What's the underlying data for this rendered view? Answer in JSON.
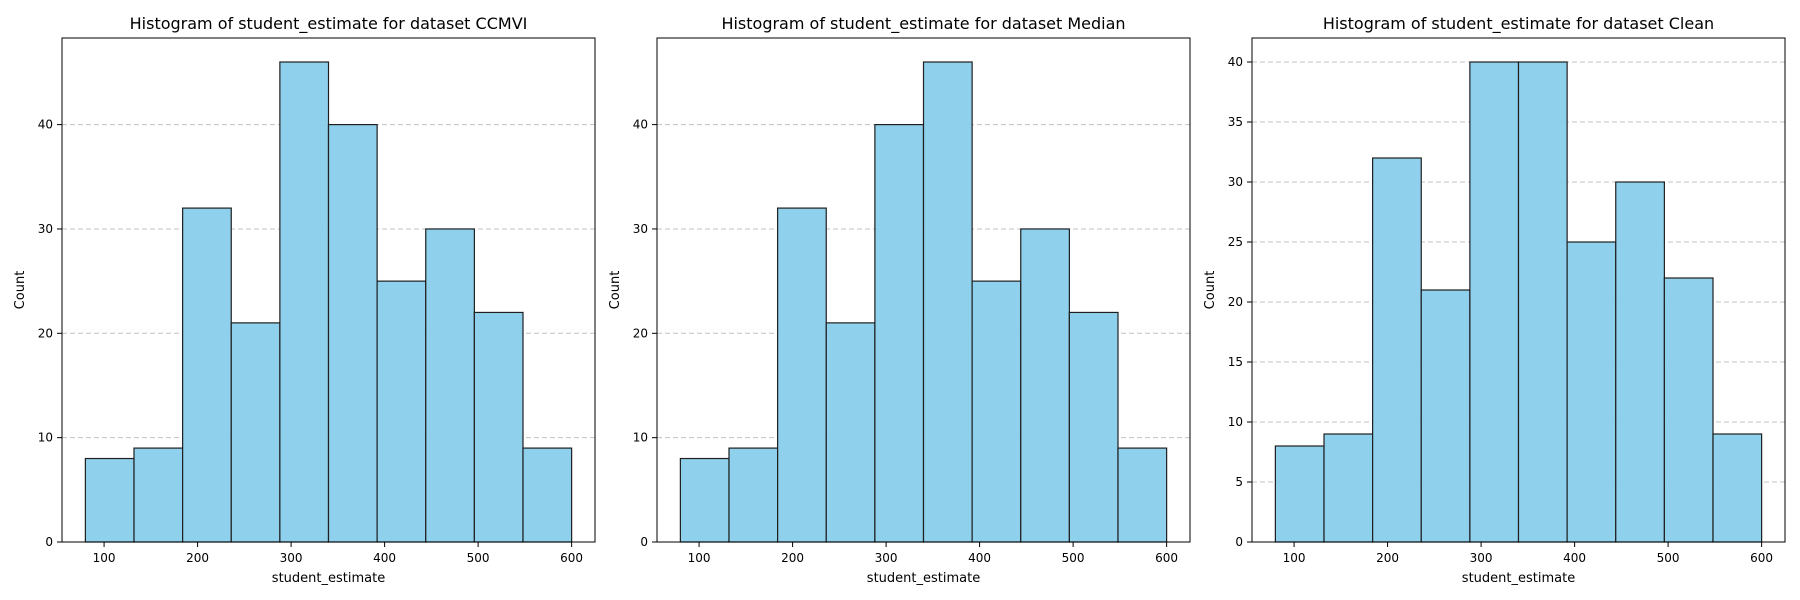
{
  "chart_data": [
    {
      "type": "bar",
      "title": "Histogram of student_estimate for dataset CCMVI",
      "xlabel": "student_estimate",
      "ylabel": "Count",
      "bin_edges": [
        80,
        132,
        184,
        236,
        288,
        340,
        392,
        444,
        496,
        548,
        600
      ],
      "values": [
        8,
        9,
        32,
        21,
        46,
        40,
        25,
        30,
        22,
        9
      ],
      "xlim": [
        55,
        625
      ],
      "ylim": [
        0,
        48.3
      ],
      "xticks": [
        100,
        200,
        300,
        400,
        500,
        600
      ],
      "yticks": [
        0,
        10,
        20,
        30,
        40
      ],
      "grid": "y",
      "bar_color": "#87CEEB"
    },
    {
      "type": "bar",
      "title": "Histogram of student_estimate for dataset Median",
      "xlabel": "student_estimate",
      "ylabel": "Count",
      "bin_edges": [
        80,
        132,
        184,
        236,
        288,
        340,
        392,
        444,
        496,
        548,
        600
      ],
      "values": [
        8,
        9,
        32,
        21,
        40,
        46,
        25,
        30,
        22,
        9
      ],
      "xlim": [
        55,
        625
      ],
      "ylim": [
        0,
        48.3
      ],
      "xticks": [
        100,
        200,
        300,
        400,
        500,
        600
      ],
      "yticks": [
        0,
        10,
        20,
        30,
        40
      ],
      "grid": "y",
      "bar_color": "#87CEEB"
    },
    {
      "type": "bar",
      "title": "Histogram of student_estimate for dataset Clean",
      "xlabel": "student_estimate",
      "ylabel": "Count",
      "bin_edges": [
        80,
        132,
        184,
        236,
        288,
        340,
        392,
        444,
        496,
        548,
        600
      ],
      "values": [
        8,
        9,
        32,
        21,
        40,
        40,
        25,
        30,
        22,
        9
      ],
      "xlim": [
        55,
        625
      ],
      "ylim": [
        0,
        42
      ],
      "xticks": [
        100,
        200,
        300,
        400,
        500,
        600
      ],
      "yticks": [
        0,
        5,
        10,
        15,
        20,
        25,
        30,
        35,
        40
      ],
      "grid": "y",
      "bar_color": "#87CEEB"
    }
  ]
}
